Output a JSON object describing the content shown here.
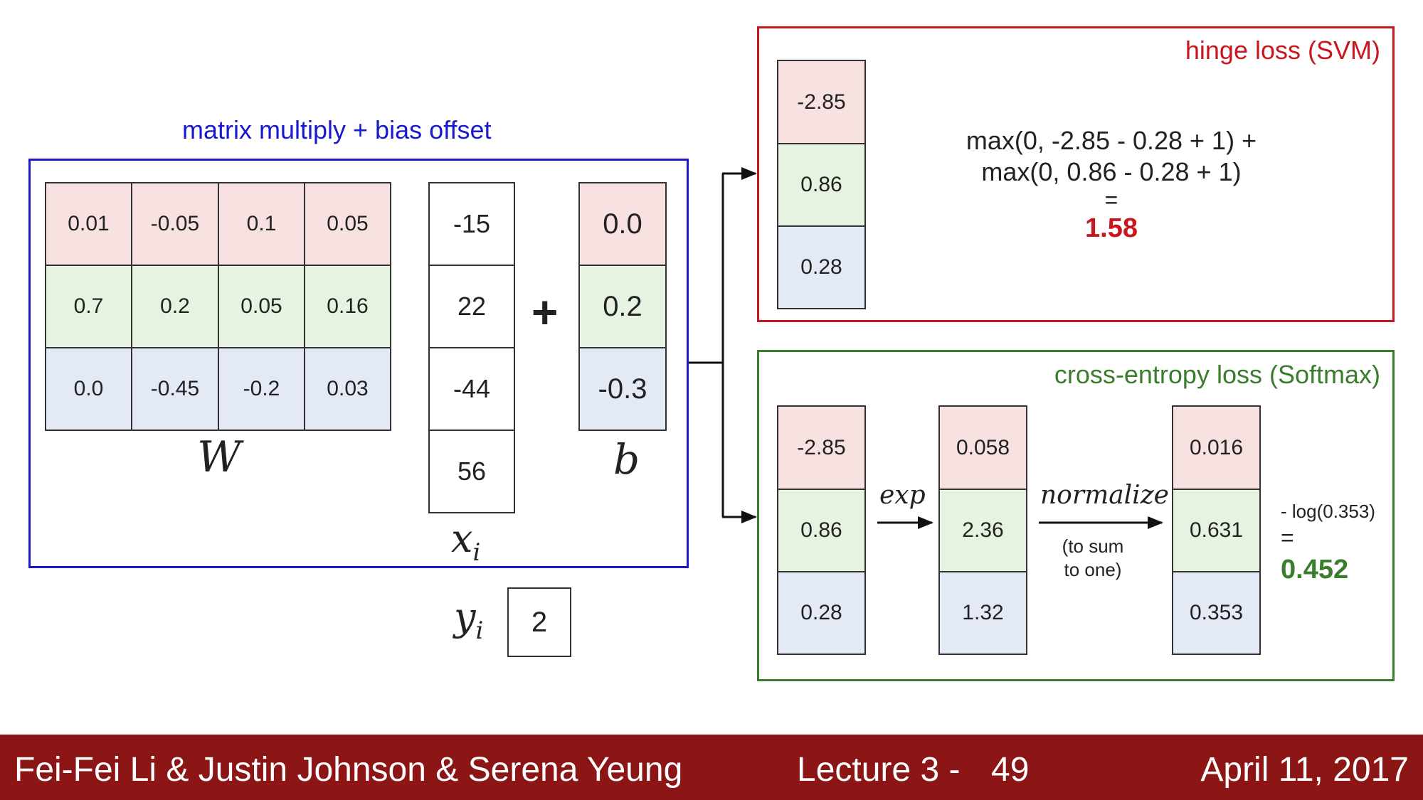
{
  "panels": {
    "matmul_title": "matrix multiply + bias offset",
    "hinge_title": "hinge loss (SVM)",
    "softmax_title": "cross-entropy loss (Softmax)"
  },
  "colors": {
    "matmul_border": "#1a1acc",
    "hinge_border": "#c8171f",
    "softmax_border": "#3a7d2c",
    "row0": "#f8e2e1",
    "row1": "#e5f3e0",
    "row2": "#e3eaf6",
    "footer": "#8c1515"
  },
  "W": {
    "label": "W",
    "rows": [
      [
        "0.01",
        "-0.05",
        "0.1",
        "0.05"
      ],
      [
        "0.7",
        "0.2",
        "0.05",
        "0.16"
      ],
      [
        "0.0",
        "-0.45",
        "-0.2",
        "0.03"
      ]
    ]
  },
  "x": {
    "label": "x",
    "sub": "i",
    "values": [
      "-15",
      "22",
      "-44",
      "56"
    ]
  },
  "plus": "+",
  "b": {
    "label": "b",
    "values": [
      "0.0",
      "0.2",
      "-0.3"
    ]
  },
  "y": {
    "label": "y",
    "sub": "i",
    "value": "2"
  },
  "hinge": {
    "scores": [
      "-2.85",
      "0.86",
      "0.28"
    ],
    "formula_line1": "max(0, -2.85 - 0.28 + 1) +",
    "formula_line2": "max(0, 0.86 - 0.28 + 1)",
    "equals": "=",
    "result": "1.58"
  },
  "softmax": {
    "scores": [
      "-2.85",
      "0.86",
      "0.28"
    ],
    "exp_label": "exp",
    "exp_values": [
      "0.058",
      "2.36",
      "1.32"
    ],
    "normalize_label": "normalize",
    "normalize_note_line1": "(to sum",
    "normalize_note_line2": "to one)",
    "probs": [
      "0.016",
      "0.631",
      "0.353"
    ],
    "loss_expr": "- log(0.353)",
    "equals": "=",
    "result": "0.452"
  },
  "footer": {
    "authors": "Fei-Fei Li & Justin Johnson & Serena Yeung",
    "lecture": "Lecture 3 -",
    "page": "49",
    "date": "April 11, 2017"
  }
}
